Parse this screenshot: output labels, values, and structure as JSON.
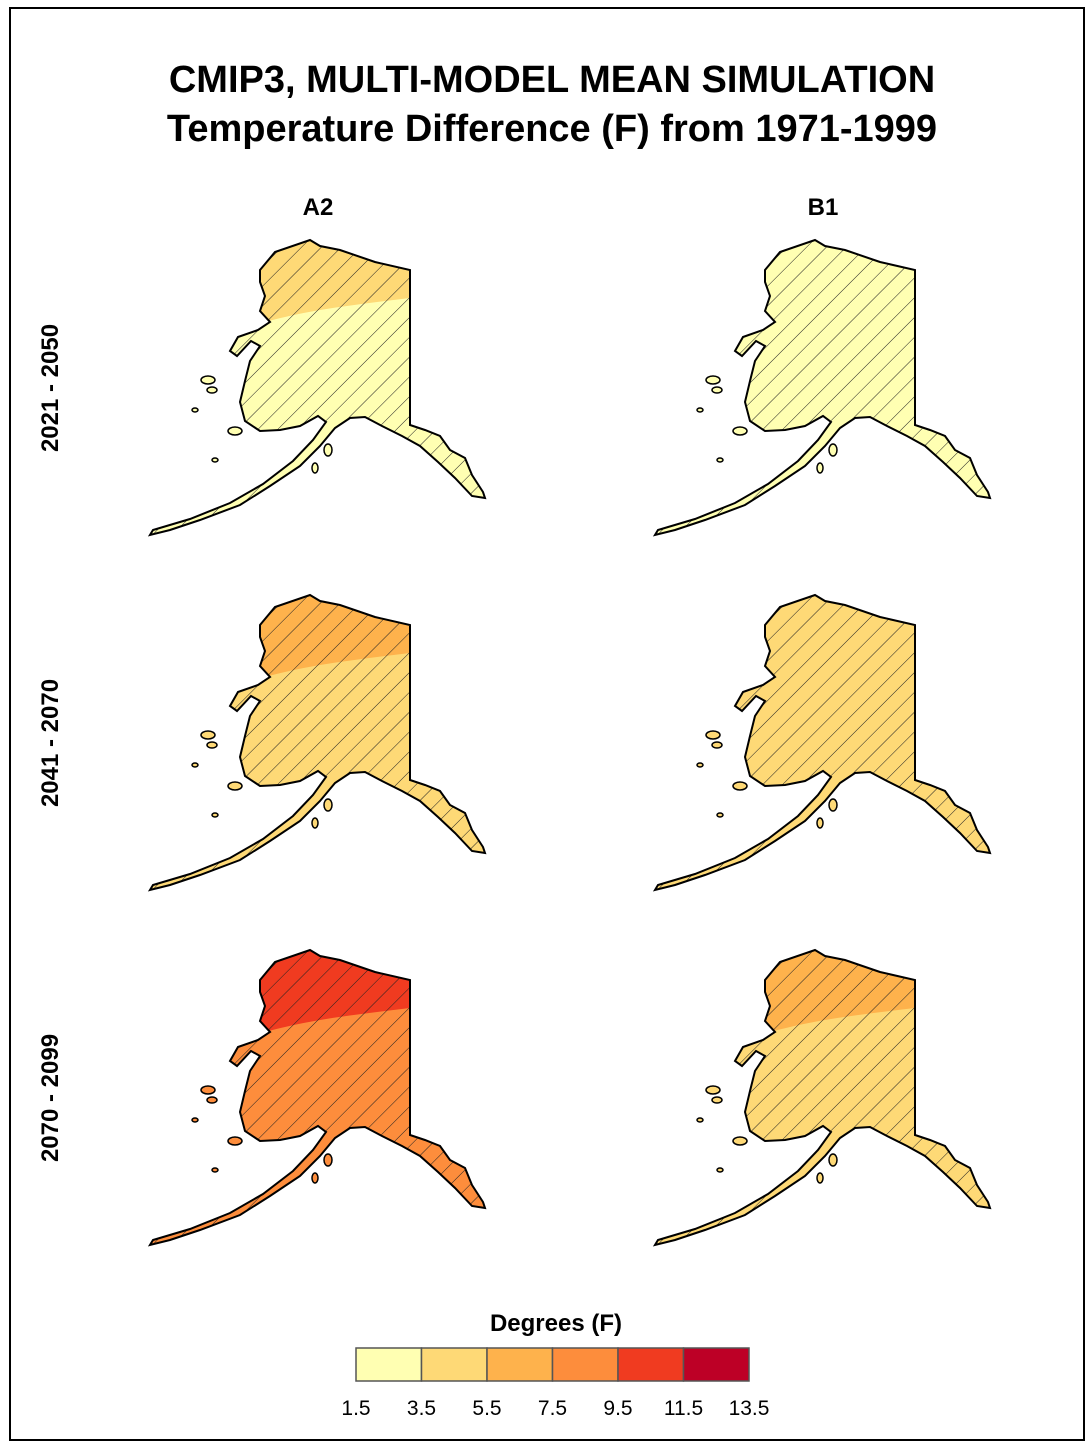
{
  "header": {
    "title": [
      "CMIP3, MULTI-MODEL MEAN SIMULATION",
      "Temperature Difference (F) from 1971-1999"
    ]
  },
  "columns": [
    "A2",
    "B1"
  ],
  "rows": [
    "2021 - 2050",
    "2041 - 2070",
    "2070 - 2099"
  ],
  "panels": [
    [
      {
        "north": "#fed976",
        "south": "#ffffb2"
      },
      {
        "north": "#ffffb2",
        "south": "#ffffb2"
      }
    ],
    [
      {
        "north": "#feb24c",
        "south": "#fed976"
      },
      {
        "north": "#fed976",
        "south": "#fed976"
      }
    ],
    [
      {
        "north": "#f03b20",
        "south": "#fd8d3c"
      },
      {
        "north": "#feb24c",
        "south": "#fed976"
      }
    ]
  ],
  "legend": {
    "title": "Degrees (F)",
    "ticks": [
      1.5,
      3.5,
      5.5,
      7.5,
      9.5,
      11.5,
      13.5
    ],
    "colors": [
      "#ffffb2",
      "#fed976",
      "#feb24c",
      "#fd8d3c",
      "#f03b20",
      "#bd0026"
    ]
  }
}
